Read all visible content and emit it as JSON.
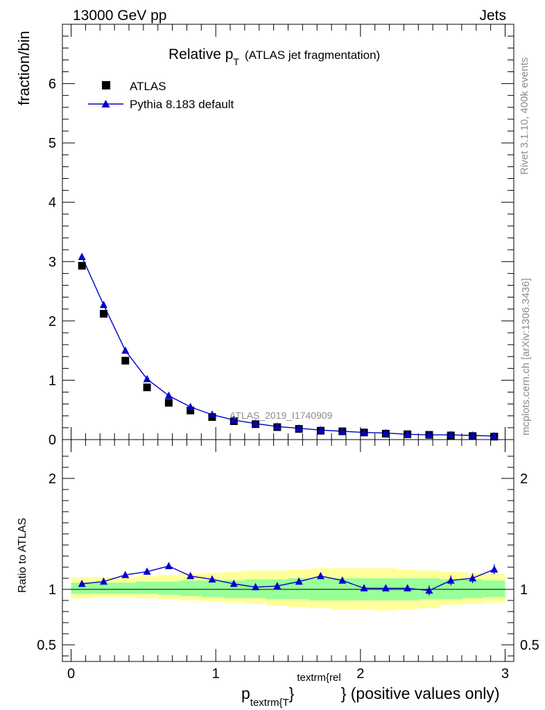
{
  "header": {
    "left": "13000 GeV pp",
    "right": "Jets"
  },
  "side_labels": {
    "events": "Rivet 3.1.10,  400k events",
    "source": "mcplots.cern.ch [arXiv:1306.3436]"
  },
  "watermark": "ATLAS_2019_I1740909",
  "main_title": {
    "prefix": "Relative p",
    "sub": "T",
    "suffix": "(ATLAS jet fragmentation)"
  },
  "xlabel": {
    "p": "p",
    "sub": "textrm{T",
    "sup": "textrm{rel",
    "close": "}",
    "suffix": "} (positive values only)"
  },
  "colors": {
    "data": "#000000",
    "mc": "#0000cc",
    "band_inner": "#99ff99",
    "band_outer": "#ffff99"
  },
  "chart_data": [
    {
      "type": "scatter",
      "title": "Relative pT (ATLAS jet fragmentation)",
      "ylabel": "fraction/bin",
      "xlim": [
        -0.06,
        3.06
      ],
      "ylim": [
        0,
        7
      ],
      "yticks": [
        0,
        1,
        2,
        3,
        4,
        5,
        6
      ],
      "ytick_labels": [
        "0",
        "1",
        "2",
        "3",
        "4",
        "5",
        "6"
      ],
      "legend": [
        "ATLAS",
        "Pythia 8.183 default"
      ],
      "x": [
        0.075,
        0.225,
        0.375,
        0.525,
        0.675,
        0.825,
        0.975,
        1.125,
        1.275,
        1.425,
        1.575,
        1.725,
        1.875,
        2.025,
        2.175,
        2.325,
        2.475,
        2.625,
        2.775,
        2.925
      ],
      "series": [
        {
          "name": "ATLAS",
          "values": [
            2.93,
            2.12,
            1.33,
            0.88,
            0.62,
            0.49,
            0.38,
            0.31,
            0.26,
            0.21,
            0.18,
            0.15,
            0.14,
            0.12,
            0.1,
            0.09,
            0.08,
            0.07,
            0.06,
            0.05
          ]
        },
        {
          "name": "Pythia 8.183 default",
          "values": [
            3.08,
            2.27,
            1.5,
            1.02,
            0.74,
            0.55,
            0.42,
            0.33,
            0.27,
            0.22,
            0.19,
            0.16,
            0.14,
            0.12,
            0.11,
            0.09,
            0.08,
            0.08,
            0.07,
            0.06
          ]
        }
      ]
    },
    {
      "type": "line",
      "title": "",
      "ylabel": "Ratio to ATLAS",
      "xlabel": "p_T^rel (positive values only)",
      "xlim": [
        -0.06,
        3.06
      ],
      "ylim": [
        0.35,
        2.35
      ],
      "yticks": [
        0.5,
        1,
        2
      ],
      "ytick_labels": [
        "0.5",
        "1",
        "2"
      ],
      "xticks": [
        0,
        1,
        2,
        3
      ],
      "xtick_labels": [
        "0",
        "1",
        "2",
        "3"
      ],
      "x": [
        0.075,
        0.225,
        0.375,
        0.525,
        0.675,
        0.825,
        0.975,
        1.125,
        1.275,
        1.425,
        1.575,
        1.725,
        1.875,
        2.025,
        2.175,
        2.325,
        2.475,
        2.625,
        2.775,
        2.925
      ],
      "series": [
        {
          "name": "Pythia 8.183 default / ATLAS",
          "values": [
            1.05,
            1.07,
            1.13,
            1.16,
            1.21,
            1.12,
            1.09,
            1.05,
            1.02,
            1.03,
            1.07,
            1.12,
            1.08,
            1.01,
            1.01,
            1.01,
            0.99,
            1.08,
            1.1,
            1.18
          ]
        },
        {
          "name": "ATLAS stat uncertainty (upper)",
          "values": [
            1.06,
            1.06,
            1.06,
            1.07,
            1.07,
            1.08,
            1.08,
            1.08,
            1.09,
            1.09,
            1.1,
            1.1,
            1.1,
            1.1,
            1.1,
            1.1,
            1.1,
            1.09,
            1.09,
            1.08
          ]
        },
        {
          "name": "ATLAS stat uncertainty (lower)",
          "values": [
            0.96,
            0.96,
            0.96,
            0.96,
            0.95,
            0.94,
            0.93,
            0.92,
            0.92,
            0.91,
            0.91,
            0.9,
            0.9,
            0.9,
            0.9,
            0.9,
            0.91,
            0.91,
            0.92,
            0.93
          ]
        },
        {
          "name": "ATLAS total uncertainty (upper)",
          "values": [
            1.11,
            1.11,
            1.11,
            1.12,
            1.13,
            1.14,
            1.15,
            1.16,
            1.17,
            1.17,
            1.18,
            1.19,
            1.19,
            1.19,
            1.19,
            1.18,
            1.17,
            1.16,
            1.15,
            1.14
          ]
        },
        {
          "name": "ATLAS total uncertainty (lower)",
          "values": [
            0.92,
            0.93,
            0.93,
            0.92,
            0.91,
            0.9,
            0.89,
            0.88,
            0.87,
            0.85,
            0.84,
            0.83,
            0.82,
            0.82,
            0.81,
            0.82,
            0.83,
            0.86,
            0.87,
            0.88
          ]
        }
      ]
    }
  ]
}
